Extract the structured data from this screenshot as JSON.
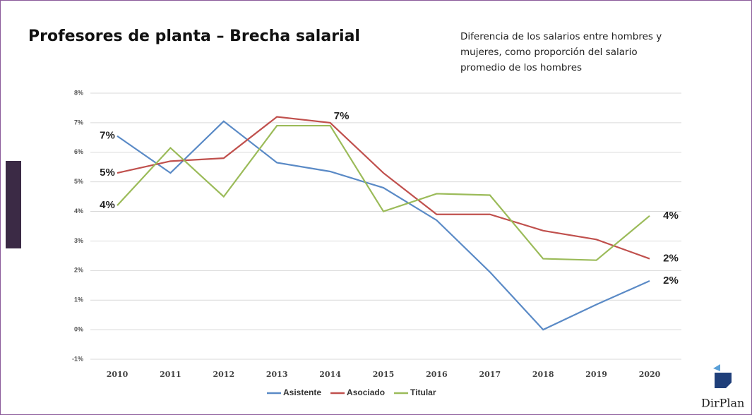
{
  "chart_data": {
    "type": "line",
    "title": "Profesores de planta – Brecha salarial",
    "subtitle": [
      "Diferencia de los salarios entre hombres y",
      "mujeres, como proporción del salario",
      "promedio de los hombres"
    ],
    "x": [
      2010,
      2011,
      2012,
      2013,
      2014,
      2015,
      2016,
      2017,
      2018,
      2019,
      2020
    ],
    "xlim": [
      2010,
      2020
    ],
    "ylim": [
      -1,
      8
    ],
    "yticks": [
      {
        "value": -1,
        "label": "-1%"
      },
      {
        "value": 0,
        "label": "0%"
      },
      {
        "value": 1,
        "label": "1%"
      },
      {
        "value": 2,
        "label": "2%"
      },
      {
        "value": 3,
        "label": "3%"
      },
      {
        "value": 4,
        "label": "4%"
      },
      {
        "value": 5,
        "label": "5%"
      },
      {
        "value": 6,
        "label": "6%"
      },
      {
        "value": 7,
        "label": "7%"
      },
      {
        "value": 8,
        "label": "8%"
      }
    ],
    "grid": true,
    "legend": "bottom",
    "series": [
      {
        "name": "Asistente",
        "color": "#5a8ac6",
        "values": [
          6.55,
          5.3,
          7.05,
          5.65,
          5.35,
          4.8,
          3.7,
          1.95,
          0.0,
          0.85,
          1.65
        ],
        "value_labels": [
          "7%",
          null,
          null,
          null,
          null,
          null,
          null,
          null,
          null,
          null,
          "2%"
        ]
      },
      {
        "name": "Asociado",
        "color": "#c0504d",
        "values": [
          5.3,
          5.7,
          5.8,
          7.2,
          7.0,
          5.3,
          3.9,
          3.9,
          3.35,
          3.05,
          2.4
        ],
        "value_labels": [
          "5%",
          null,
          null,
          null,
          "7%",
          null,
          null,
          null,
          null,
          null,
          "2%"
        ]
      },
      {
        "name": "Titular",
        "color": "#9bbb59",
        "values": [
          4.2,
          6.15,
          4.5,
          6.9,
          6.9,
          4.0,
          4.6,
          4.55,
          2.4,
          2.35,
          3.85
        ],
        "value_labels": [
          "4%",
          null,
          null,
          null,
          null,
          null,
          null,
          null,
          null,
          null,
          "4%"
        ]
      }
    ]
  },
  "logo": "DirPlan"
}
